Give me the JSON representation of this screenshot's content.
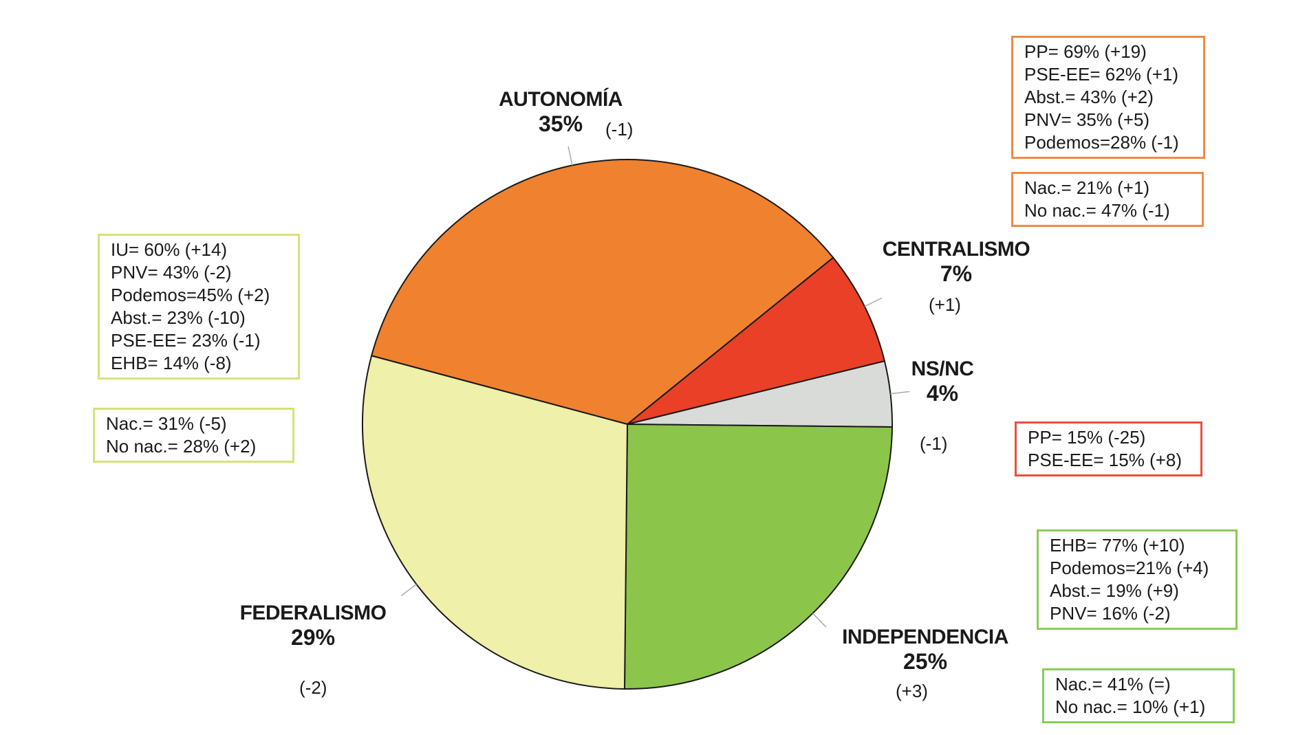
{
  "chart_data": {
    "type": "pie",
    "title": "",
    "slices": [
      {
        "label": "AUTONOMÍA",
        "value": 35,
        "value_label": "35%",
        "change": "(-1)",
        "color": "#f0812e"
      },
      {
        "label": "CENTRALISMO",
        "value": 7,
        "value_label": "7%",
        "change": "(+1)",
        "color": "#e94027"
      },
      {
        "label": "NS/NC",
        "value": 4,
        "value_label": "4%",
        "change": "(-1)",
        "color": "#d9dbd9"
      },
      {
        "label": "INDEPENDENCIA",
        "value": 25,
        "value_label": "25%",
        "change": "(+3)",
        "color": "#8bc54a"
      },
      {
        "label": "FEDERALISMO",
        "value": 29,
        "value_label": "29%",
        "change": "(-2)",
        "color": "#eff0a9"
      }
    ],
    "annotation_boxes": {
      "autonomia_parties": {
        "border": "#ee8a45",
        "lines": [
          "PP= 69% (+19)",
          "PSE-EE= 62% (+1)",
          "Abst.= 43% (+2)",
          "PNV= 35% (+5)",
          "Podemos=28% (-1)"
        ]
      },
      "autonomia_nac": {
        "border": "#ee8a45",
        "lines": [
          "Nac.= 21% (+1)",
          "No nac.= 47% (-1)"
        ]
      },
      "federalismo_parties": {
        "border": "#d6e27a",
        "lines": [
          "IU= 60% (+14)",
          "PNV= 43% (-2)",
          "Podemos=45% (+2)",
          "Abst.= 23% (-10)",
          "PSE-EE= 23% (-1)",
          "EHB= 14% (-8)"
        ]
      },
      "federalismo_nac": {
        "border": "#d6e27a",
        "lines": [
          "Nac.= 31% (-5)",
          "No nac.= 28% (+2)"
        ]
      },
      "centralismo_parties": {
        "border": "#e9503a",
        "lines": [
          "PP= 15% (-25)",
          "PSE-EE= 15% (+8)"
        ]
      },
      "independencia_parties": {
        "border": "#8ccb55",
        "lines": [
          "EHB= 77% (+10)",
          "Podemos=21% (+4)",
          "Abst.= 19% (+9)",
          "PNV= 16% (-2)"
        ]
      },
      "independencia_nac": {
        "border": "#8ccb55",
        "lines": [
          "Nac.= 41% (=)",
          "No nac.= 10% (+1)"
        ]
      }
    }
  }
}
